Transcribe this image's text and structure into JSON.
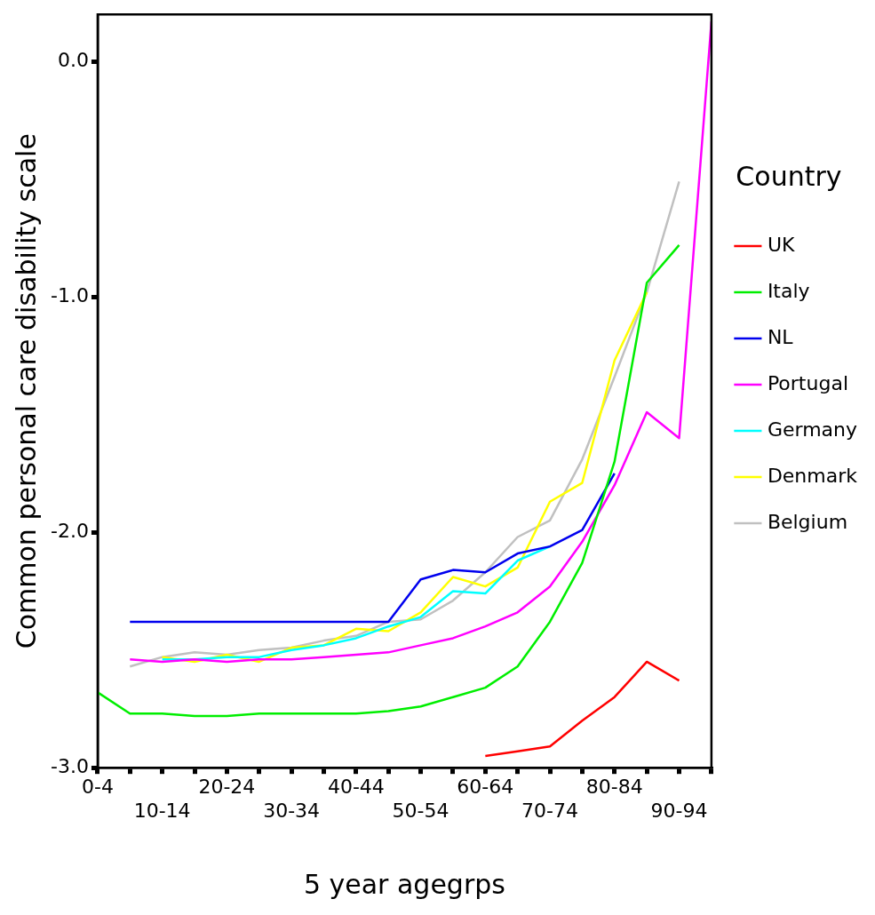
{
  "chart_data": {
    "type": "line",
    "xlabel": "5 year agegrps",
    "ylabel": "Common personal care disability scale",
    "legend_title": "Country",
    "legend": "right",
    "grid": false,
    "marker": "none",
    "line_style": "solid",
    "categories": [
      "0-4",
      null,
      "10-14",
      null,
      "20-24",
      null,
      "30-34",
      null,
      "40-44",
      null,
      "50-54",
      null,
      "60-64",
      null,
      "70-74",
      null,
      "80-84",
      null,
      "90-94",
      null
    ],
    "ylim": [
      -3,
      0.2
    ],
    "yticks": [
      {
        "value": -3,
        "label": "-3.0"
      },
      {
        "value": -2,
        "label": "-2.0"
      },
      {
        "value": -1,
        "label": "-1.0"
      },
      {
        "value": 0,
        "label": "0.0"
      }
    ],
    "series": [
      {
        "name": "UK",
        "color": "#ff0000",
        "values": [
          null,
          null,
          null,
          null,
          null,
          null,
          null,
          null,
          null,
          null,
          null,
          null,
          -2.95,
          -2.93,
          -2.91,
          -2.8,
          -2.7,
          -2.55,
          -2.63,
          null
        ]
      },
      {
        "name": "Italy",
        "color": "#00ee00",
        "values": [
          -2.68,
          -2.77,
          -2.77,
          -2.78,
          -2.78,
          -2.77,
          -2.77,
          -2.77,
          -2.77,
          -2.76,
          -2.74,
          -2.7,
          -2.66,
          -2.57,
          -2.38,
          -2.13,
          -1.7,
          -0.94,
          -0.78,
          null
        ]
      },
      {
        "name": "NL",
        "color": "#0000ee",
        "values": [
          null,
          -2.38,
          -2.38,
          -2.38,
          -2.38,
          -2.38,
          -2.38,
          -2.38,
          -2.38,
          -2.38,
          -2.2,
          -2.16,
          -2.17,
          -2.09,
          -2.06,
          -1.99,
          -1.75,
          null,
          null,
          null
        ]
      },
      {
        "name": "Portugal",
        "color": "#ff00ff",
        "values": [
          null,
          -2.54,
          -2.55,
          -2.54,
          -2.55,
          -2.54,
          -2.54,
          -2.53,
          -2.52,
          -2.51,
          -2.48,
          -2.45,
          -2.4,
          -2.34,
          -2.23,
          -2.04,
          -1.8,
          -1.49,
          -1.6,
          0.17
        ]
      },
      {
        "name": "Germany",
        "color": "#00ffff",
        "values": [
          null,
          null,
          -2.54,
          -2.54,
          -2.53,
          -2.53,
          -2.5,
          -2.48,
          -2.45,
          -2.4,
          -2.36,
          -2.25,
          -2.26,
          -2.12,
          -2.06,
          null,
          null,
          null,
          null,
          null
        ]
      },
      {
        "name": "Denmark",
        "color": "#ffff00",
        "values": [
          null,
          null,
          -2.53,
          -2.55,
          -2.52,
          -2.55,
          -2.49,
          -2.48,
          -2.41,
          -2.42,
          -2.34,
          -2.19,
          -2.23,
          -2.15,
          -1.87,
          -1.79,
          -1.27,
          -0.98,
          null,
          null
        ]
      },
      {
        "name": "Belgium",
        "color": "#c0c0c0",
        "values": [
          null,
          -2.57,
          -2.53,
          -2.51,
          -2.52,
          -2.5,
          -2.49,
          -2.46,
          -2.44,
          -2.38,
          -2.37,
          -2.29,
          -2.17,
          -2.02,
          -1.95,
          -1.69,
          -1.34,
          -0.98,
          -0.51,
          null
        ]
      }
    ]
  }
}
